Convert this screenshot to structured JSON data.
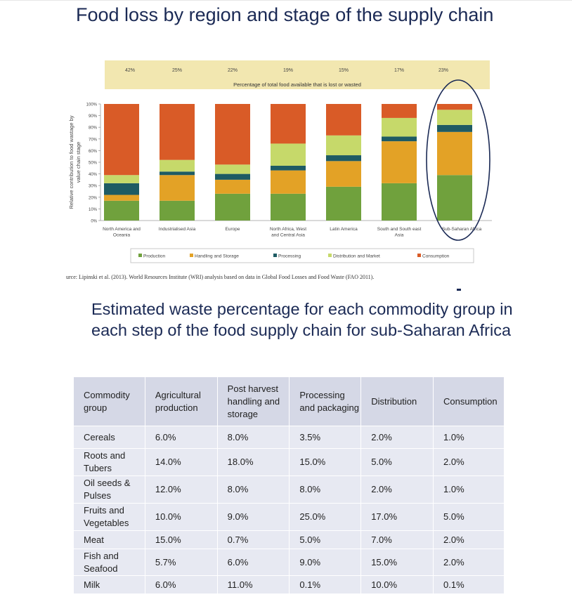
{
  "slide": {
    "title": "Food loss by region and stage of the supply chain",
    "source": "urce: Lipinski et al. (2013). World Resources Institute (WRI) analysis based on data in Global Food Losses and Food Waste (FAO 2011).",
    "section_title": "Estimated waste percentage for each commodity group in each step of the food supply chain for sub-Saharan Africa"
  },
  "chart_data": {
    "type": "bar",
    "stacked": true,
    "ylabel": "Relative contribution to food wastage by value chain stage",
    "ylim": [
      0,
      100
    ],
    "yticks": [
      "0%",
      "10%",
      "20%",
      "30%",
      "40%",
      "50%",
      "60%",
      "70%",
      "80%",
      "90%",
      "100%"
    ],
    "categories": [
      "North America and Oceania",
      "Industrialised Asia",
      "Europe",
      "North Africa, West and Central Asia",
      "Latin America",
      "South and South east Asia",
      "Sub-Saharan Africa"
    ],
    "category_lines": [
      [
        "North America and",
        "Oceania"
      ],
      [
        "Industrialised Asia"
      ],
      [
        "Europe"
      ],
      [
        "North Africa, West",
        "and Central Asia"
      ],
      [
        "Latin America"
      ],
      [
        "South and South east",
        "Asia"
      ],
      [
        "Sub-Saharan Africa"
      ]
    ],
    "top_band": {
      "label": "Percentage of total food available that is lost or wasted",
      "values": [
        "42%",
        "25%",
        "22%",
        "19%",
        "15%",
        "17%",
        "23%"
      ],
      "color": "#f2e7b0"
    },
    "series": [
      {
        "name": "Production",
        "color": "#70a13d",
        "values": [
          17,
          17,
          23,
          23,
          29,
          32,
          39
        ]
      },
      {
        "name": "Handling and Storage",
        "color": "#e3a226",
        "values": [
          5,
          22,
          12,
          20,
          22,
          36,
          37
        ]
      },
      {
        "name": "Processing",
        "color": "#1e5b63",
        "values": [
          10,
          3,
          5,
          4,
          5,
          4,
          6
        ]
      },
      {
        "name": "Distribution and Market",
        "color": "#c6d96a",
        "values": [
          7,
          10,
          8,
          19,
          17,
          16,
          13
        ]
      },
      {
        "name": "Consumption",
        "color": "#d95b27",
        "values": [
          61,
          48,
          52,
          34,
          27,
          12,
          5
        ]
      }
    ],
    "highlight_category": "Sub-Saharan Africa",
    "highlight_color": "#1b2a55",
    "grid": false,
    "legend_position": "bottom"
  },
  "table": {
    "headers": [
      "Commodity group",
      "Agricultural production",
      "Post harvest handling and storage",
      "Processing and packaging",
      "Distribution",
      "Consumption"
    ],
    "rows": [
      [
        "Cereals",
        "6.0%",
        "8.0%",
        "3.5%",
        "2.0%",
        "1.0%"
      ],
      [
        "Roots and Tubers",
        "14.0%",
        "18.0%",
        "15.0%",
        "5.0%",
        "2.0%"
      ],
      [
        "Oil seeds & Pulses",
        "12.0%",
        "8.0%",
        "8.0%",
        "2.0%",
        "1.0%"
      ],
      [
        "Fruits and Vegetables",
        "10.0%",
        "9.0%",
        "25.0%",
        "17.0%",
        "5.0%"
      ],
      [
        "Meat",
        "15.0%",
        "0.7%",
        "5.0%",
        "7.0%",
        "2.0%"
      ],
      [
        "Fish and Seafood",
        "5.7%",
        "6.0%",
        "9.0%",
        "15.0%",
        "2.0%"
      ],
      [
        "Milk",
        "6.0%",
        "11.0%",
        "0.1%",
        "10.0%",
        "0.1%"
      ]
    ]
  }
}
